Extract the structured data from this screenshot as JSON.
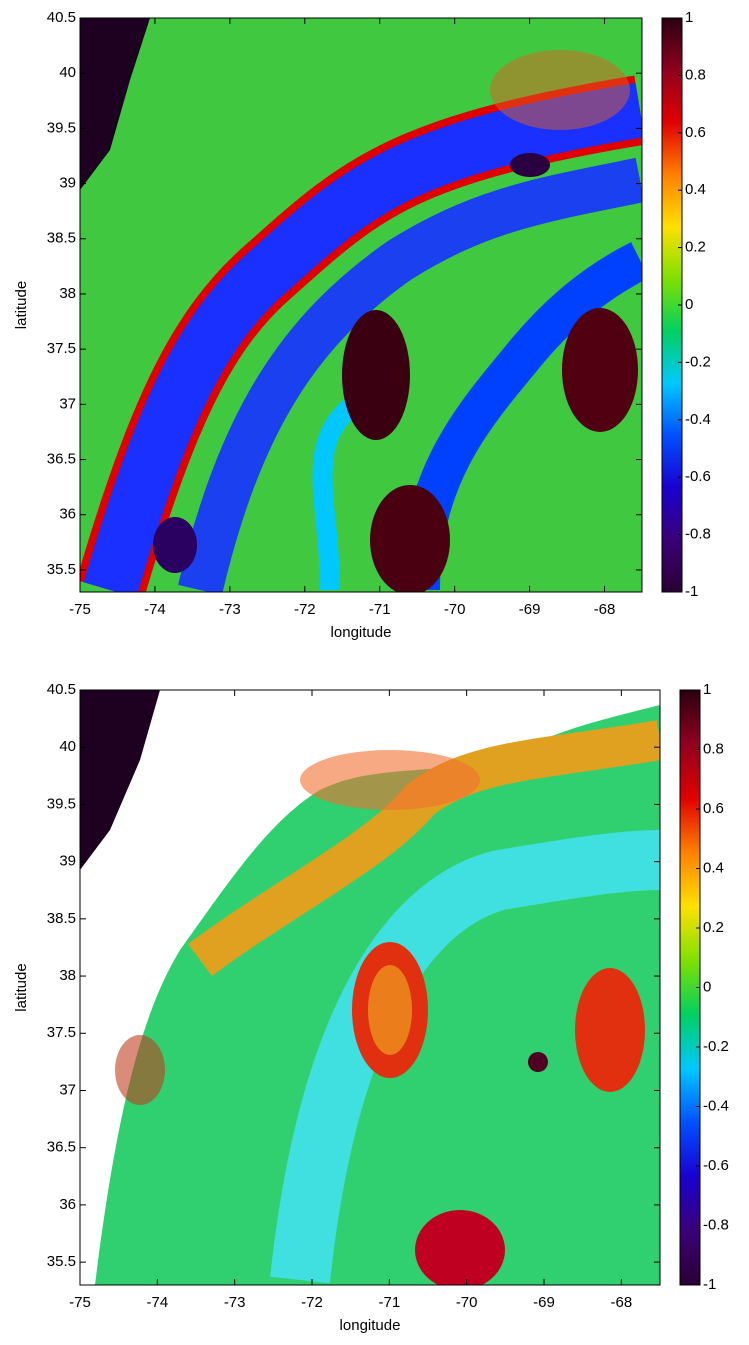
{
  "chart_data": [
    {
      "type": "image",
      "xlabel": "longitude",
      "ylabel": "latitude",
      "xlim": [
        -75,
        -67.5
      ],
      "xticks": [
        -75,
        -74,
        -73,
        -72,
        -71,
        -70,
        -69,
        -68
      ],
      "ylim": [
        35.3,
        40.5
      ],
      "yticks": [
        35.5,
        36,
        36.5,
        37,
        37.5,
        38,
        38.5,
        39,
        39.5,
        40,
        40.5
      ],
      "clim": [
        -1,
        1
      ],
      "cticks": [
        -1,
        -0.8,
        -0.6,
        -0.4,
        -0.2,
        0,
        0.2,
        0.4,
        0.6,
        0.8,
        1
      ],
      "colormap": [
        "#2a0033",
        "#3a0078",
        "#1a00d0",
        "#0050ff",
        "#00c8ff",
        "#00d060",
        "#80e000",
        "#ffe000",
        "#ff8000",
        "#e00000",
        "#900020",
        "#2a0010"
      ]
    },
    {
      "type": "image",
      "xlabel": "longitude",
      "ylabel": "latitude",
      "xlim": [
        -75,
        -67.5
      ],
      "xticks": [
        -75,
        -74,
        -73,
        -72,
        -71,
        -70,
        -69,
        -68
      ],
      "ylim": [
        35.3,
        40.5
      ],
      "yticks": [
        35.5,
        36,
        36.5,
        37,
        37.5,
        38,
        38.5,
        39,
        39.5,
        40,
        40.5
      ],
      "clim": [
        -1,
        1
      ],
      "cticks": [
        -1,
        -0.8,
        -0.6,
        -0.4,
        -0.2,
        0,
        0.2,
        0.4,
        0.6,
        0.8,
        1
      ],
      "colormap": [
        "#2a0033",
        "#3a0078",
        "#1a00d0",
        "#0050ff",
        "#00c8ff",
        "#00d060",
        "#80e000",
        "#ffe000",
        "#ff8000",
        "#e00000",
        "#900020",
        "#2a0010"
      ]
    }
  ]
}
